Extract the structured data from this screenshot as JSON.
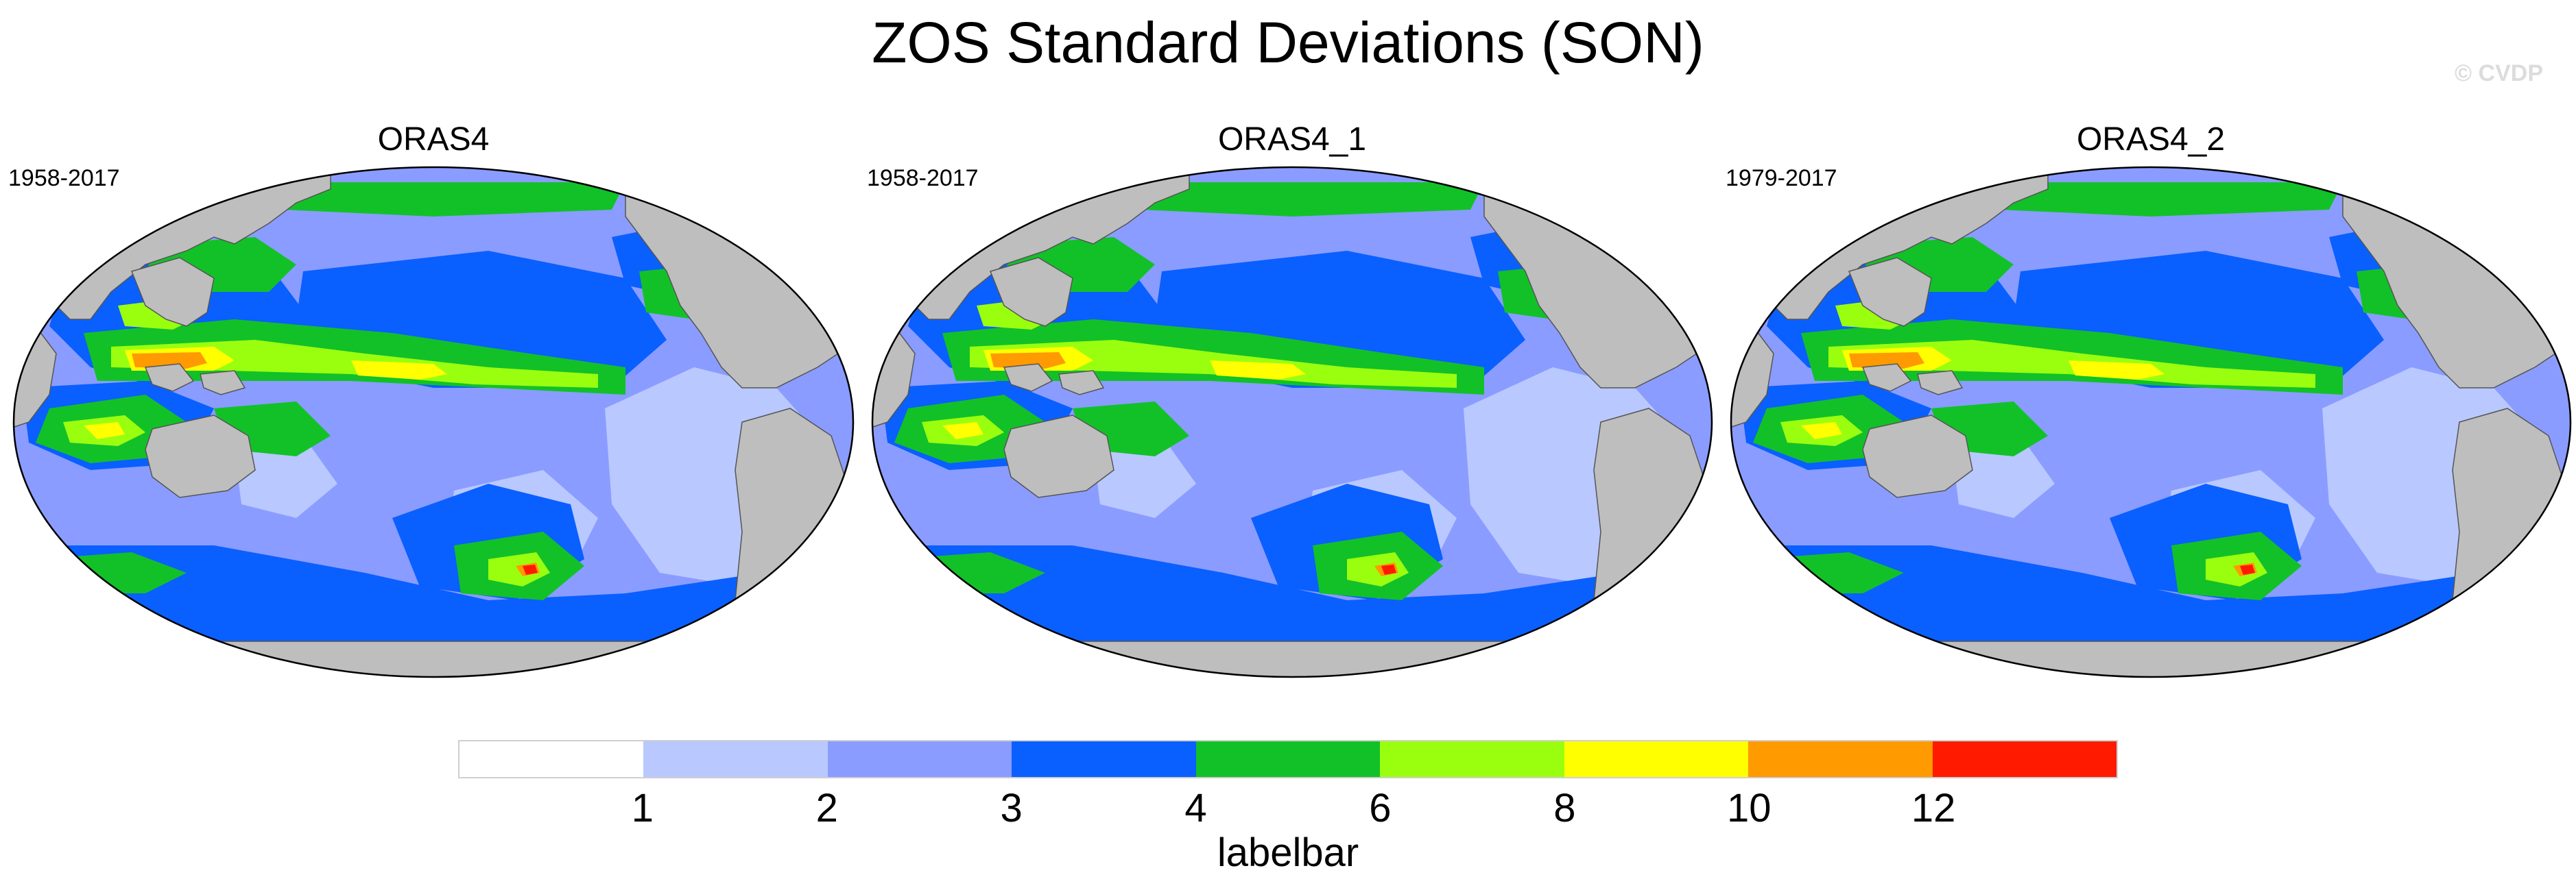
{
  "title": "ZOS Standard Deviations (SON)",
  "watermark": "© CVDP",
  "panels": [
    {
      "name": "ORAS4",
      "years": "1958-2017"
    },
    {
      "name": "ORAS4_1",
      "years": "1958-2017"
    },
    {
      "name": "ORAS4_2",
      "years": "1979-2017"
    }
  ],
  "labelbar": {
    "title": "labelbar",
    "ticks": [
      "1",
      "2",
      "3",
      "4",
      "6",
      "8",
      "10",
      "12"
    ],
    "colors": [
      "#ffffff",
      "#b9c8ff",
      "#8a9cff",
      "#0a5fff",
      "#12c128",
      "#9aff0f",
      "#ffff00",
      "#ff9a00",
      "#ff1a00"
    ]
  },
  "map_colors": {
    "land": "#bebebe",
    "ocean_low": "#b9c8ff",
    "ocean_mid": "#8a9cff",
    "ocean_high": "#0a5fff",
    "band_green": "#12c128",
    "band_lime": "#9aff0f",
    "band_yellow": "#ffff00",
    "band_orange": "#ff9a00",
    "band_red": "#ff1a00"
  }
}
